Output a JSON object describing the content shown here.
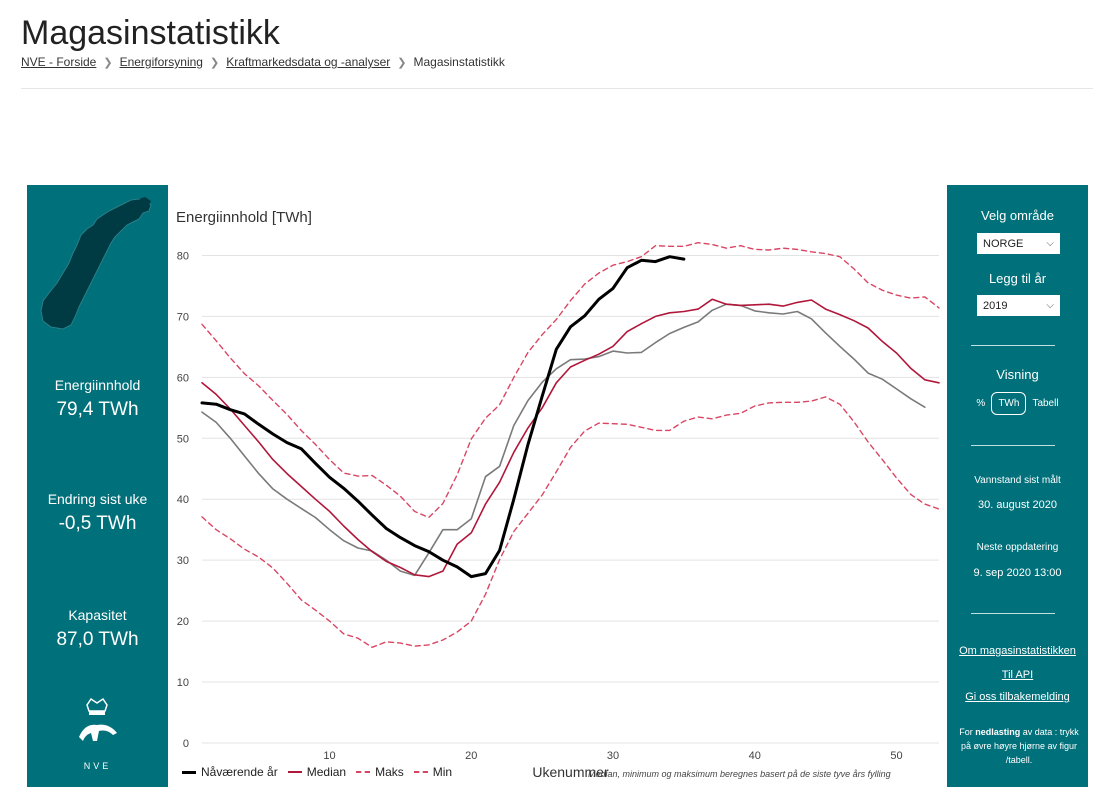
{
  "page": {
    "title": "Magasinstatistikk",
    "breadcrumb": [
      "NVE - Forside",
      "Energiforsyning",
      "Kraftmarkedsdata og -analyser",
      "Magasinstatistikk"
    ]
  },
  "left_panel": {
    "energy_label": "Energiinnhold",
    "energy_value": "79,4 TWh",
    "change_label": "Endring sist uke",
    "change_value": "-0,5 TWh",
    "capacity_label": "Kapasitet",
    "capacity_value": "87,0 TWh",
    "logo_text": "NVE"
  },
  "right_panel": {
    "area_label": "Velg område",
    "area_value": "NORGE",
    "year_label": "Legg til år",
    "year_value": "2019",
    "view_label": "Visning",
    "view_options": [
      "%",
      "TWh",
      "Tabell"
    ],
    "measured_label": "Vannstand sist målt",
    "measured_value": "30. august 2020",
    "next_update_label": "Neste oppdatering",
    "next_update_value": "9. sep 2020 13:00",
    "links": [
      "Om magasinstatistikken",
      "Til API",
      "Gi oss tilbakemelding"
    ],
    "download_prefix": "For ",
    "download_bold": "nedlasting",
    "download_suffix": " av data : trykk på øvre høyre hjørne av figur /tabell."
  },
  "colors": {
    "panel": "#00707a",
    "current": "#000000",
    "median": "#b0173a",
    "maks": "#d94663",
    "min": "#d94663",
    "year2019": "#7a7a7a"
  },
  "chart_data": {
    "type": "line",
    "title": "Energiinnhold [TWh]",
    "xlabel": "Ukenummer",
    "ylabel": "",
    "xlim": [
      1,
      53
    ],
    "ylim": [
      0,
      85
    ],
    "xticks": [
      10,
      20,
      30,
      40,
      50
    ],
    "yticks": [
      0,
      10,
      20,
      30,
      40,
      50,
      60,
      70,
      80
    ],
    "grid": true,
    "legend_position": "bottom-left",
    "footnote": "Median, minimum og maksimum beregnes basert på de siste tyve års fylling",
    "series": [
      {
        "name": "Nåværende år",
        "key": "current",
        "style": "solid-thick",
        "x": [
          1,
          2,
          3,
          4,
          5,
          6,
          7,
          8,
          9,
          10,
          11,
          12,
          13,
          14,
          15,
          16,
          17,
          18,
          19,
          20,
          21,
          22,
          23,
          24,
          25,
          26,
          27,
          28,
          29,
          30,
          31,
          32,
          33,
          34,
          35
        ],
        "y": [
          55.8,
          55.6,
          54.7,
          54.0,
          52.3,
          50.7,
          49.3,
          48.3,
          45.9,
          43.6,
          41.8,
          39.7,
          37.4,
          35.2,
          33.7,
          32.4,
          31.4,
          30.0,
          28.9,
          27.3,
          27.8,
          31.6,
          40.0,
          49.0,
          56.9,
          64.6,
          68.3,
          70.1,
          72.8,
          74.6,
          78.0,
          79.2,
          79.0,
          79.8,
          79.4
        ]
      },
      {
        "name": "Median",
        "key": "median",
        "style": "solid",
        "x": [
          1,
          2,
          3,
          4,
          5,
          6,
          7,
          8,
          9,
          10,
          11,
          12,
          13,
          14,
          15,
          16,
          17,
          18,
          19,
          20,
          21,
          22,
          23,
          24,
          25,
          26,
          27,
          28,
          29,
          30,
          31,
          32,
          33,
          34,
          35,
          36,
          37,
          38,
          39,
          40,
          41,
          42,
          43,
          44,
          45,
          46,
          47,
          48,
          49,
          50,
          51,
          52,
          53
        ],
        "y": [
          59.1,
          57.2,
          54.8,
          52.1,
          49.4,
          46.5,
          44.2,
          42.1,
          40.0,
          38.0,
          35.6,
          33.4,
          31.4,
          29.8,
          28.8,
          27.6,
          27.3,
          28.2,
          32.6,
          34.5,
          39.2,
          42.8,
          47.7,
          51.7,
          55.0,
          59.1,
          61.7,
          62.8,
          63.8,
          65.1,
          67.5,
          68.8,
          70.0,
          70.6,
          70.8,
          71.2,
          72.8,
          72.0,
          71.8,
          71.9,
          72.0,
          71.7,
          72.3,
          72.7,
          71.2,
          70.3,
          69.3,
          68.1,
          65.9,
          64.0,
          61.5,
          59.6,
          59.1
        ]
      },
      {
        "name": "Maks",
        "key": "maks",
        "style": "dashed",
        "x": [
          1,
          2,
          3,
          4,
          5,
          6,
          7,
          8,
          9,
          10,
          11,
          12,
          13,
          14,
          15,
          16,
          17,
          18,
          19,
          20,
          21,
          22,
          23,
          24,
          25,
          26,
          27,
          28,
          29,
          30,
          31,
          32,
          33,
          34,
          35,
          36,
          37,
          38,
          39,
          40,
          41,
          42,
          43,
          44,
          45,
          46,
          47,
          48,
          49,
          50,
          51,
          52,
          53
        ],
        "y": [
          68.7,
          66.0,
          63.2,
          60.6,
          58.6,
          56.2,
          53.9,
          51.3,
          49.0,
          46.5,
          44.3,
          43.8,
          43.9,
          42.3,
          40.5,
          38.0,
          37.0,
          39.3,
          44.0,
          49.9,
          53.3,
          55.5,
          60.0,
          64.1,
          67.0,
          69.5,
          72.6,
          75.3,
          77.1,
          78.4,
          79.0,
          79.8,
          81.6,
          81.5,
          81.5,
          82.1,
          81.8,
          81.2,
          81.6,
          81.0,
          80.9,
          81.2,
          81.0,
          80.6,
          80.3,
          79.8,
          77.8,
          75.5,
          74.3,
          73.5,
          73.0,
          73.2,
          71.4
        ]
      },
      {
        "name": "Min",
        "key": "min",
        "style": "dashed",
        "x": [
          1,
          2,
          3,
          4,
          5,
          6,
          7,
          8,
          9,
          10,
          11,
          12,
          13,
          14,
          15,
          16,
          17,
          18,
          19,
          20,
          21,
          22,
          23,
          24,
          25,
          26,
          27,
          28,
          29,
          30,
          31,
          32,
          33,
          34,
          35,
          36,
          37,
          38,
          39,
          40,
          41,
          42,
          43,
          44,
          45,
          46,
          47,
          48,
          49,
          50,
          51,
          52,
          53
        ],
        "y": [
          37.1,
          35.0,
          33.5,
          31.8,
          30.5,
          28.7,
          26.2,
          23.5,
          21.8,
          20.0,
          17.9,
          17.2,
          15.7,
          16.6,
          16.4,
          15.9,
          16.1,
          16.9,
          18.2,
          20.0,
          24.4,
          30.1,
          34.7,
          37.7,
          40.7,
          44.5,
          48.5,
          51.2,
          52.5,
          52.4,
          52.3,
          51.8,
          51.3,
          51.3,
          52.8,
          53.5,
          53.2,
          53.8,
          54.1,
          55.3,
          55.8,
          55.9,
          55.9,
          56.1,
          56.8,
          55.6,
          52.7,
          49.4,
          46.5,
          43.5,
          40.8,
          39.2,
          38.4
        ]
      },
      {
        "name": "2019",
        "key": "year2019",
        "style": "solid",
        "x": [
          1,
          2,
          3,
          4,
          5,
          6,
          7,
          8,
          9,
          10,
          11,
          12,
          13,
          14,
          15,
          16,
          17,
          18,
          19,
          20,
          21,
          22,
          23,
          24,
          25,
          26,
          27,
          28,
          29,
          30,
          31,
          32,
          33,
          34,
          35,
          36,
          37,
          38,
          39,
          40,
          41,
          42,
          43,
          44,
          45,
          46,
          47,
          48,
          49,
          50,
          51,
          52
        ],
        "y": [
          54.3,
          52.6,
          50.0,
          47.1,
          44.2,
          41.7,
          40.0,
          38.5,
          37.0,
          35.0,
          33.2,
          32.0,
          31.5,
          30.0,
          28.2,
          27.5,
          31.2,
          35.0,
          35.0,
          36.8,
          43.7,
          45.4,
          52.1,
          56.2,
          59.2,
          61.4,
          62.9,
          63.0,
          63.4,
          64.3,
          64.0,
          64.1,
          65.7,
          67.2,
          68.2,
          69.1,
          71.0,
          72.0,
          71.8,
          70.9,
          70.6,
          70.4,
          70.8,
          69.6,
          67.3,
          65.1,
          63.0,
          60.7,
          59.7,
          58.1,
          56.5,
          55.1
        ]
      }
    ]
  }
}
